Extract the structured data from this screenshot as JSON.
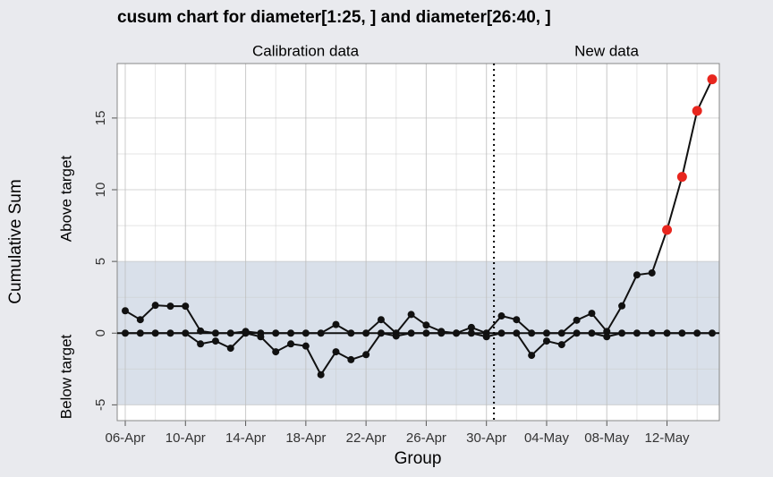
{
  "chart_data": {
    "type": "cusum",
    "title": "cusum chart for diameter[1:25, ] and diameter[26:40, ]",
    "xlabel": "Group",
    "ylabel": "Cumulative Sum",
    "upper_label": "Above target",
    "lower_label": "Below target",
    "sections": [
      "Calibration data",
      "New data"
    ],
    "calibration_groups": 25,
    "categories": [
      "06-Apr",
      null,
      null,
      null,
      "10-Apr",
      null,
      null,
      null,
      "14-Apr",
      null,
      null,
      null,
      "18-Apr",
      null,
      null,
      null,
      "22-Apr",
      null,
      null,
      null,
      "26-Apr",
      null,
      null,
      null,
      "30-Apr",
      null,
      null,
      null,
      "04-May",
      null,
      null,
      null,
      "08-May",
      null,
      null,
      null,
      "12-May",
      null,
      null,
      null
    ],
    "series": [
      {
        "name": "Above target",
        "color": "#111111",
        "values": [
          1.56,
          0.94,
          1.94,
          1.88,
          1.88,
          0.15,
          0,
          0,
          0.12,
          0,
          0,
          0,
          0,
          0,
          0.6,
          0,
          0,
          0.94,
          0,
          1.3,
          0.56,
          0.12,
          0,
          0.4,
          0,
          1.2,
          0.94,
          0,
          0,
          0,
          0.9,
          1.38,
          0.12,
          1.9,
          4.06,
          4.2,
          7.2,
          10.9,
          15.5,
          17.7
        ]
      },
      {
        "name": "Below target",
        "color": "#111111",
        "values": [
          0,
          0,
          0,
          0,
          0,
          -0.75,
          -0.55,
          -1.05,
          0,
          -0.25,
          -1.3,
          -0.75,
          -0.9,
          -2.9,
          -1.3,
          -1.85,
          -1.5,
          0,
          -0.2,
          0,
          0,
          0,
          0,
          0,
          -0.25,
          0,
          0,
          -1.55,
          -0.55,
          -0.8,
          0,
          0,
          -0.25,
          0,
          0,
          0,
          0,
          0,
          0,
          0
        ]
      }
    ],
    "decision_interval": [
      -5,
      5
    ],
    "violation_color": "#e8261e",
    "band_color": "#d9e0ea",
    "ylim": [
      -6.1,
      18.8
    ],
    "yticks": [
      -5,
      0,
      5,
      10,
      15
    ],
    "grid": true
  }
}
